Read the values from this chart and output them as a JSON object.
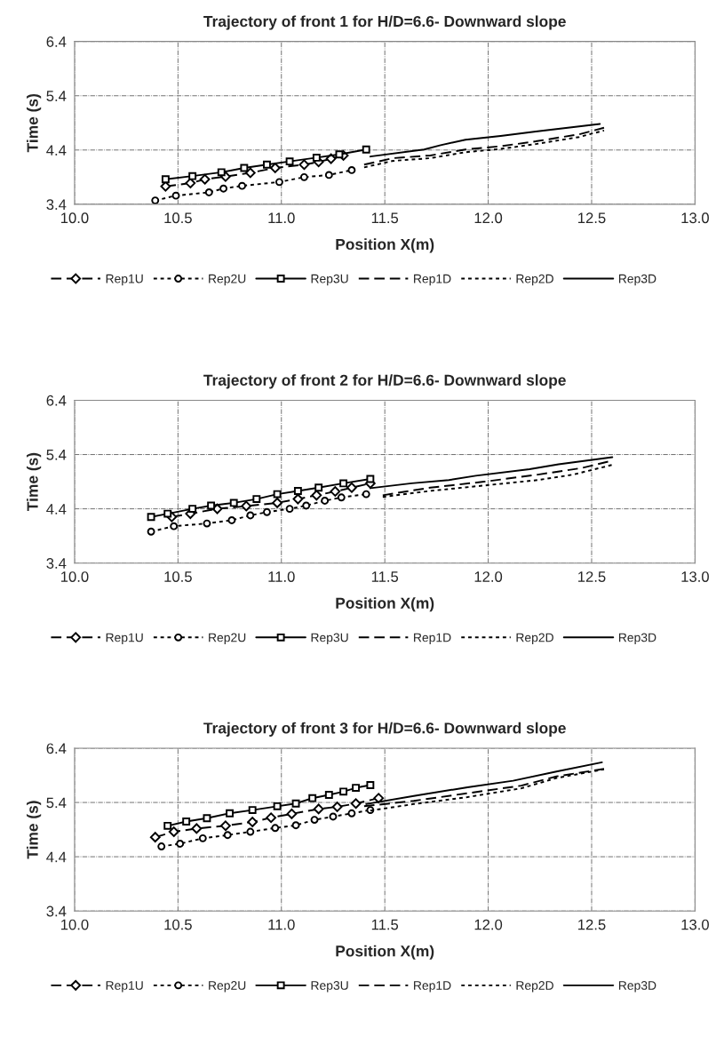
{
  "chart_data": [
    {
      "type": "line",
      "title": "Trajectory of front 1 for H/D=6.6- Downward slope",
      "xlabel": "Position X(m)",
      "ylabel": "Time (s)",
      "xlim": [
        10.0,
        13.0
      ],
      "xticks": [
        {
          "value": 10.0,
          "label": "10.0"
        },
        {
          "value": 10.5,
          "label": "10.5"
        },
        {
          "value": 11.0,
          "label": "11.0"
        },
        {
          "value": 11.5,
          "label": "11.5"
        },
        {
          "value": 12.0,
          "label": "12.0"
        },
        {
          "value": 12.5,
          "label": "12.5"
        },
        {
          "value": 13.0,
          "label": "13.0"
        }
      ],
      "ylim": [
        3.4,
        6.4
      ],
      "yticks": [
        3.4,
        4.4,
        5.4,
        6.4
      ],
      "grid": true,
      "legend": "bottom",
      "series": [
        {
          "name": "Rep1U",
          "color": "#000000",
          "marker": "diamond",
          "line_style": "dashed",
          "x": [
            10.44,
            10.56,
            10.63,
            10.73,
            10.85,
            10.97,
            11.11,
            11.18,
            11.24,
            11.3
          ],
          "values": [
            3.73,
            3.79,
            3.86,
            3.91,
            3.98,
            4.07,
            4.13,
            4.18,
            4.24,
            4.3
          ]
        },
        {
          "name": "Rep2U",
          "color": "#000000",
          "marker": "circle",
          "line_style": "dotted",
          "x": [
            10.39,
            10.49,
            10.65,
            10.72,
            10.81,
            10.99,
            11.11,
            11.23,
            11.34
          ],
          "values": [
            3.47,
            3.56,
            3.62,
            3.69,
            3.74,
            3.81,
            3.9,
            3.94,
            4.03
          ]
        },
        {
          "name": "Rep3U",
          "color": "#000000",
          "marker": "square",
          "line_style": "solid",
          "x": [
            10.44,
            10.57,
            10.71,
            10.82,
            10.93,
            11.04,
            11.17,
            11.28,
            11.41
          ],
          "values": [
            3.86,
            3.92,
            3.99,
            4.07,
            4.13,
            4.19,
            4.26,
            4.32,
            4.41
          ]
        },
        {
          "name": "Rep1D",
          "color": "#000000",
          "marker": "none",
          "line_style": "dashed",
          "x": [
            11.4,
            11.54,
            11.72,
            11.89,
            12.06,
            12.23,
            12.44,
            12.56
          ],
          "values": [
            4.13,
            4.25,
            4.3,
            4.41,
            4.47,
            4.56,
            4.69,
            4.81
          ]
        },
        {
          "name": "Rep2D",
          "color": "#000000",
          "marker": "none",
          "line_style": "dotted",
          "x": [
            11.4,
            11.54,
            11.72,
            11.89,
            12.06,
            12.23,
            12.44,
            12.56
          ],
          "values": [
            4.08,
            4.2,
            4.25,
            4.36,
            4.42,
            4.51,
            4.64,
            4.76
          ]
        },
        {
          "name": "Rep3D",
          "color": "#000000",
          "marker": "none",
          "line_style": "solid",
          "x": [
            11.43,
            11.69,
            11.77,
            11.89,
            12.06,
            12.23,
            12.54
          ],
          "values": [
            4.28,
            4.41,
            4.49,
            4.59,
            4.66,
            4.74,
            4.88
          ]
        }
      ]
    },
    {
      "type": "line",
      "title": "Trajectory of front 2 for H/D=6.6- Downward slope",
      "xlabel": "Position X(m)",
      "ylabel": "Time (s)",
      "xlim": [
        10.0,
        13.0
      ],
      "xticks": [
        {
          "value": 10.0,
          "label": "10.0"
        },
        {
          "value": 10.5,
          "label": "10.5"
        },
        {
          "value": 11.0,
          "label": "11.0"
        },
        {
          "value": 11.5,
          "label": "11.5"
        },
        {
          "value": 12.0,
          "label": "12.0"
        },
        {
          "value": 12.5,
          "label": "12.5"
        },
        {
          "value": 13.0,
          "label": "13.0"
        }
      ],
      "ylim": [
        3.4,
        6.4
      ],
      "yticks": [
        3.4,
        4.4,
        5.4,
        6.4
      ],
      "grid": true,
      "legend": "bottom",
      "series": [
        {
          "name": "Rep1U",
          "color": "#000000",
          "marker": "diamond",
          "line_style": "dashed",
          "x": [
            10.47,
            10.56,
            10.69,
            10.83,
            10.98,
            11.08,
            11.17,
            11.26,
            11.34,
            11.43
          ],
          "values": [
            4.25,
            4.31,
            4.4,
            4.45,
            4.51,
            4.58,
            4.65,
            4.72,
            4.79,
            4.87
          ]
        },
        {
          "name": "Rep2U",
          "color": "#000000",
          "marker": "circle",
          "line_style": "dotted",
          "x": [
            10.37,
            10.48,
            10.64,
            10.76,
            10.85,
            10.93,
            11.04,
            11.12,
            11.21,
            11.29,
            11.41
          ],
          "values": [
            3.98,
            4.08,
            4.13,
            4.19,
            4.28,
            4.34,
            4.4,
            4.46,
            4.55,
            4.61,
            4.67
          ]
        },
        {
          "name": "Rep3U",
          "color": "#000000",
          "marker": "square",
          "line_style": "solid",
          "x": [
            10.37,
            10.45,
            10.57,
            10.66,
            10.77,
            10.88,
            10.98,
            11.08,
            11.18,
            11.3,
            11.43
          ],
          "values": [
            4.25,
            4.31,
            4.4,
            4.46,
            4.51,
            4.58,
            4.67,
            4.73,
            4.79,
            4.87,
            4.95
          ]
        },
        {
          "name": "Rep1D",
          "color": "#000000",
          "marker": "none",
          "line_style": "dashed",
          "x": [
            11.49,
            11.72,
            11.98,
            12.24,
            12.45,
            12.59
          ],
          "values": [
            4.65,
            4.79,
            4.9,
            5.03,
            5.15,
            5.28
          ]
        },
        {
          "name": "Rep2D",
          "color": "#000000",
          "marker": "none",
          "line_style": "dotted",
          "x": [
            11.49,
            11.72,
            11.98,
            12.24,
            12.41,
            12.6
          ],
          "values": [
            4.62,
            4.73,
            4.83,
            4.93,
            5.03,
            5.21
          ]
        },
        {
          "name": "Rep3D",
          "color": "#000000",
          "marker": "none",
          "line_style": "solid",
          "x": [
            11.43,
            11.63,
            11.81,
            11.94,
            12.2,
            12.34,
            12.6
          ],
          "values": [
            4.78,
            4.87,
            4.93,
            5.01,
            5.13,
            5.22,
            5.35
          ]
        }
      ]
    },
    {
      "type": "line",
      "title": "Trajectory of front 3 for H/D=6.6- Downward slope",
      "xlabel": "Position X(m)",
      "ylabel": "Time (s)",
      "xlim": [
        10.0,
        13.0
      ],
      "xticks": [
        {
          "value": 10.0,
          "label": "10.0"
        },
        {
          "value": 10.5,
          "label": "10.5"
        },
        {
          "value": 11.0,
          "label": "11.0"
        },
        {
          "value": 11.5,
          "label": "11.5"
        },
        {
          "value": 12.0,
          "label": "12.0"
        },
        {
          "value": 12.5,
          "label": "12.5"
        },
        {
          "value": 13.0,
          "label": "13.0"
        }
      ],
      "ylim": [
        3.4,
        6.4
      ],
      "yticks": [
        3.4,
        4.4,
        5.4,
        6.4
      ],
      "grid": true,
      "legend": "bottom",
      "series": [
        {
          "name": "Rep1U",
          "color": "#000000",
          "marker": "diamond",
          "line_style": "dashed",
          "x": [
            10.39,
            10.48,
            10.59,
            10.73,
            10.86,
            10.95,
            11.05,
            11.18,
            11.27,
            11.36,
            11.47
          ],
          "values": [
            4.76,
            4.86,
            4.92,
            4.97,
            5.04,
            5.12,
            5.19,
            5.28,
            5.32,
            5.38,
            5.48
          ]
        },
        {
          "name": "Rep2U",
          "color": "#000000",
          "marker": "circle",
          "line_style": "dotted",
          "x": [
            10.42,
            10.51,
            10.62,
            10.74,
            10.85,
            10.97,
            11.07,
            11.16,
            11.25,
            11.34,
            11.43
          ],
          "values": [
            4.59,
            4.64,
            4.74,
            4.8,
            4.86,
            4.93,
            4.98,
            5.08,
            5.14,
            5.2,
            5.26
          ]
        },
        {
          "name": "Rep3U",
          "color": "#000000",
          "marker": "square",
          "line_style": "solid",
          "x": [
            10.45,
            10.54,
            10.64,
            10.75,
            10.86,
            10.98,
            11.07,
            11.15,
            11.23,
            11.3,
            11.36,
            11.43
          ],
          "values": [
            4.97,
            5.05,
            5.11,
            5.2,
            5.26,
            5.33,
            5.38,
            5.48,
            5.54,
            5.6,
            5.67,
            5.72
          ]
        },
        {
          "name": "Rep1D",
          "color": "#000000",
          "marker": "none",
          "line_style": "dashed",
          "x": [
            11.4,
            11.64,
            11.9,
            12.16,
            12.33,
            12.56
          ],
          "values": [
            5.33,
            5.43,
            5.57,
            5.71,
            5.88,
            6.02
          ]
        },
        {
          "name": "Rep2D",
          "color": "#000000",
          "marker": "none",
          "line_style": "dotted",
          "x": [
            11.43,
            11.64,
            11.9,
            12.16,
            12.33,
            12.56
          ],
          "values": [
            5.25,
            5.37,
            5.5,
            5.66,
            5.85,
            6.01
          ]
        },
        {
          "name": "Rep3D",
          "color": "#000000",
          "marker": "none",
          "line_style": "solid",
          "x": [
            11.41,
            11.64,
            11.9,
            12.12,
            12.33,
            12.55
          ],
          "values": [
            5.37,
            5.52,
            5.68,
            5.8,
            5.97,
            6.14
          ]
        }
      ]
    }
  ]
}
